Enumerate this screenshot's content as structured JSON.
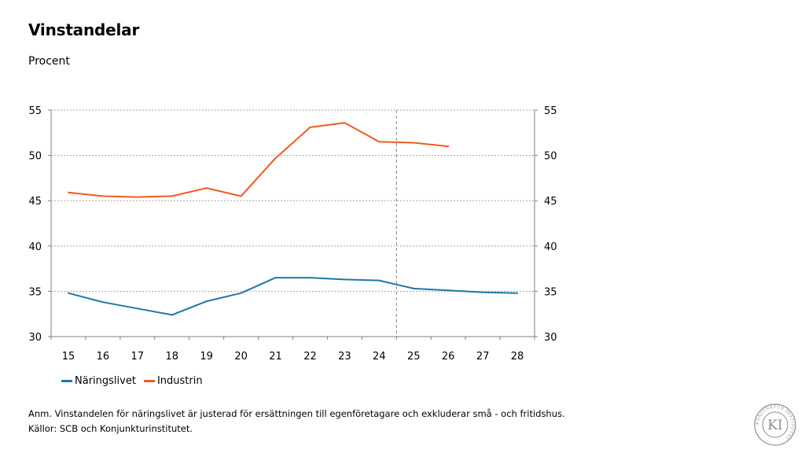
{
  "title": "Vinstandelar",
  "subtitle": "Procent",
  "note": "Anm. Vinstandelen för näringslivet är justerad för ersättningen till egenföretagare och exkluderar små    - och fritidshus.",
  "sources": "Källor: SCB och Konjunkturinstitutet.",
  "logo": {
    "text": "KI",
    "ring_text": "KONJUNKTUR INSTITUTET"
  },
  "colors": {
    "naringslivet": "#1F77A8",
    "industrin": "#F05A22",
    "grid": "#A6A6A6",
    "axis": "#808080"
  },
  "chart_data": {
    "type": "line",
    "categories": [
      "15",
      "16",
      "17",
      "18",
      "19",
      "20",
      "21",
      "22",
      "23",
      "24",
      "25",
      "26",
      "27",
      "28"
    ],
    "ylim": [
      30,
      55
    ],
    "yticks": [
      30,
      35,
      40,
      45,
      50,
      55
    ],
    "y_axis_left": true,
    "y_axis_right": true,
    "forecast_divider_after": "24",
    "legend_position": "bottom-left",
    "series": [
      {
        "name": "Näringslivet",
        "color": "#1F77A8",
        "values": [
          34.8,
          33.8,
          33.1,
          32.4,
          33.9,
          34.8,
          36.5,
          36.5,
          36.3,
          36.2,
          35.3,
          35.1,
          34.9,
          34.8
        ]
      },
      {
        "name": "Industrin",
        "color": "#F05A22",
        "values": [
          45.9,
          45.5,
          45.4,
          45.5,
          46.4,
          45.5,
          49.7,
          53.1,
          53.6,
          51.5,
          51.4,
          51.0,
          null,
          null
        ]
      }
    ]
  }
}
